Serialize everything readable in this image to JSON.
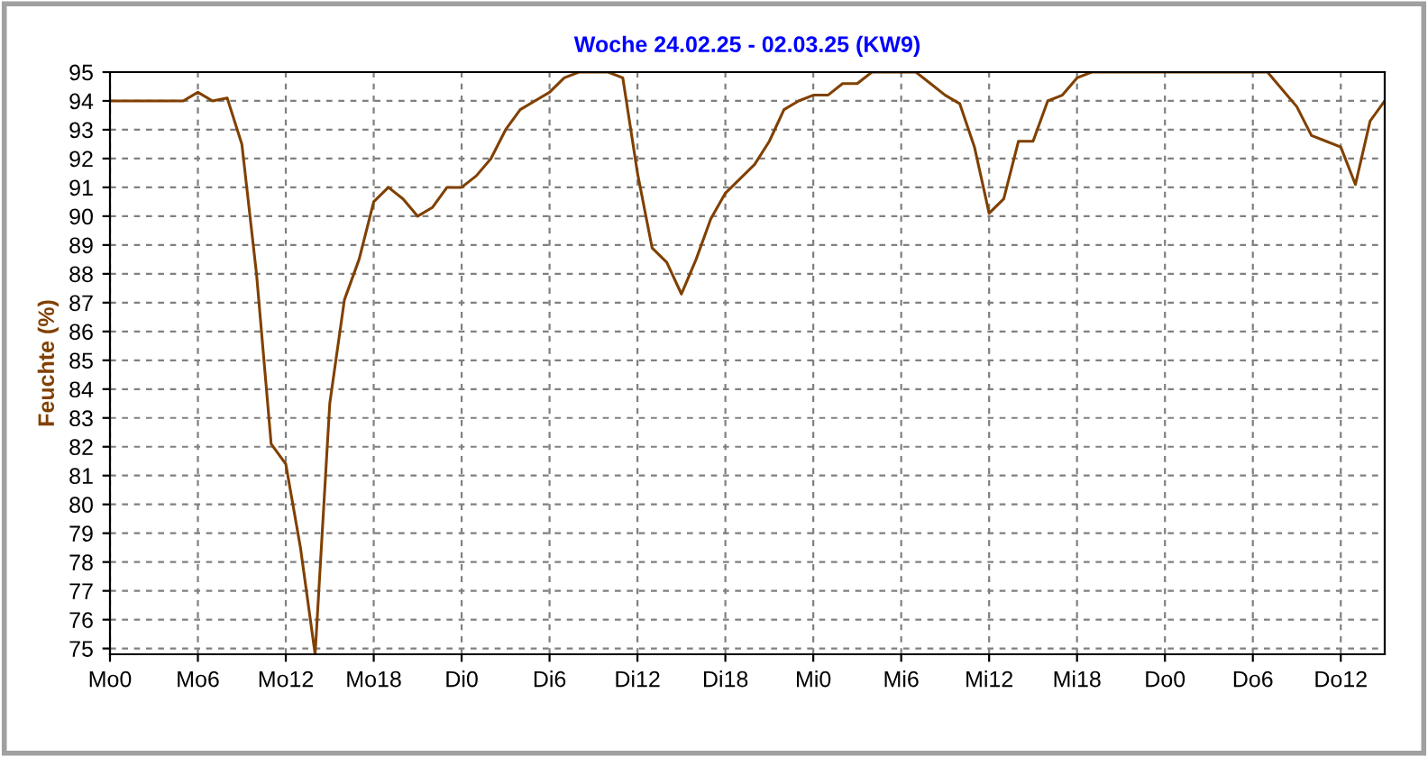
{
  "chart_data": {
    "type": "line",
    "title": "Woche 24.02.25 - 02.03.25 (KW9)",
    "ylabel": "Feuchte (%)",
    "categories": [
      "Mo0",
      null,
      null,
      null,
      null,
      null,
      "Mo6",
      null,
      null,
      null,
      null,
      null,
      "Mo12",
      null,
      null,
      null,
      null,
      null,
      "Mo18",
      null,
      null,
      null,
      null,
      null,
      "Di0",
      null,
      null,
      null,
      null,
      null,
      "Di6",
      null,
      null,
      null,
      null,
      null,
      "Di12",
      null,
      null,
      null,
      null,
      null,
      "Di18",
      null,
      null,
      null,
      null,
      null,
      "Mi0",
      null,
      null,
      null,
      null,
      null,
      "Mi6",
      null,
      null,
      null,
      null,
      null,
      "Mi12",
      null,
      null,
      null,
      null,
      null,
      "Mi18",
      null,
      null,
      null,
      null,
      null,
      "Do0",
      null,
      null,
      null,
      null,
      null,
      "Do6",
      null,
      null,
      null,
      null,
      null,
      "Do12",
      null,
      null,
      null
    ],
    "series": [
      {
        "color": "#804000",
        "values": [
          94,
          94,
          94,
          94,
          94,
          94,
          94.3,
          94.0,
          94.1,
          92.5,
          88,
          82.1,
          81.4,
          78.5,
          74.8,
          83.5,
          87.1,
          88.5,
          90.5,
          91.0,
          90.6,
          90.0,
          90.3,
          91.0,
          91.0,
          91.4,
          92.0,
          93.0,
          93.7,
          94.0,
          94.3,
          94.8,
          95,
          95,
          95,
          94.8,
          91.5,
          88.9,
          88.4,
          87.3,
          88.5,
          89.9,
          90.8,
          91.3,
          91.8,
          92.6,
          93.7,
          94.0,
          94.2,
          94.2,
          94.6,
          94.6,
          95,
          95,
          95,
          95,
          94.6,
          94.2,
          93.9,
          92.4,
          90.1,
          90.6,
          92.6,
          92.6,
          94.0,
          94.2,
          94.8,
          95,
          95,
          95,
          95,
          95,
          95,
          95,
          95,
          95,
          95,
          95,
          95,
          95,
          94.4,
          93.8,
          92.8,
          92.6,
          92.4,
          91.1,
          93.3,
          94.0
        ]
      }
    ],
    "ylim": [
      74.8,
      95
    ],
    "yticks": [
      75,
      76,
      77,
      78,
      79,
      80,
      81,
      82,
      83,
      84,
      85,
      86,
      87,
      88,
      89,
      90,
      91,
      92,
      93,
      94,
      95
    ],
    "grid": true,
    "marker": "none",
    "line_style": "solid"
  }
}
